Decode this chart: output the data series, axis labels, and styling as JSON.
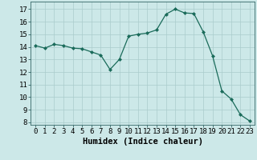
{
  "x": [
    0,
    1,
    2,
    3,
    4,
    5,
    6,
    7,
    8,
    9,
    10,
    11,
    12,
    13,
    14,
    15,
    16,
    17,
    18,
    19,
    20,
    21,
    22,
    23
  ],
  "y": [
    14.1,
    13.9,
    14.2,
    14.1,
    13.9,
    13.85,
    13.6,
    13.35,
    12.2,
    13.0,
    14.85,
    15.0,
    15.1,
    15.35,
    16.6,
    17.0,
    16.7,
    16.65,
    15.2,
    13.3,
    10.5,
    9.85,
    8.6,
    8.1
  ],
  "line_color": "#1a6b5a",
  "marker": "D",
  "marker_size": 2.0,
  "bg_color": "#cce8e8",
  "grid_color": "#aacccc",
  "xlabel": "Humidex (Indice chaleur)",
  "ylim": [
    7.8,
    17.6
  ],
  "xlim": [
    -0.5,
    23.5
  ],
  "yticks": [
    8,
    9,
    10,
    11,
    12,
    13,
    14,
    15,
    16,
    17
  ],
  "xticks": [
    0,
    1,
    2,
    3,
    4,
    5,
    6,
    7,
    8,
    9,
    10,
    11,
    12,
    13,
    14,
    15,
    16,
    17,
    18,
    19,
    20,
    21,
    22,
    23
  ],
  "xtick_labels": [
    "0",
    "1",
    "2",
    "3",
    "4",
    "5",
    "6",
    "7",
    "8",
    "9",
    "10",
    "11",
    "12",
    "13",
    "14",
    "15",
    "16",
    "17",
    "18",
    "19",
    "20",
    "21",
    "22",
    "23"
  ],
  "xlabel_fontsize": 7.5,
  "tick_fontsize": 6.5
}
